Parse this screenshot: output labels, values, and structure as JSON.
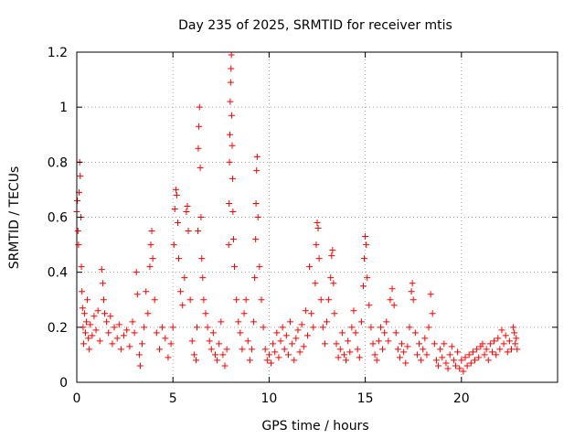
{
  "colors": {
    "series": "#ff0000"
  },
  "chart_data": {
    "type": "scatter",
    "title": "Day 235 of 2025, SRMTID for receiver mtis",
    "xlabel": "GPS time / hours",
    "ylabel": "SRMTID / TECUs",
    "xlim": [
      0,
      25
    ],
    "ylim": [
      0,
      1.2
    ],
    "x_ticks": [
      0,
      5,
      10,
      15,
      20
    ],
    "x_tick_labels": [
      "0",
      "5",
      "10",
      "15",
      "20"
    ],
    "y_ticks": [
      0,
      0.2,
      0.4,
      0.6,
      0.8,
      1,
      1.2
    ],
    "y_tick_labels": [
      "0",
      "0.2",
      "0.4",
      "0.6",
      "0.8",
      "1",
      "1.2"
    ],
    "grid": true,
    "marker": "plus",
    "series": [
      {
        "name": "SRMTID",
        "points": [
          [
            0.0,
            0.62
          ],
          [
            0.03,
            0.66
          ],
          [
            0.06,
            0.55
          ],
          [
            0.09,
            0.5
          ],
          [
            0.12,
            0.69
          ],
          [
            0.15,
            0.8
          ],
          [
            0.18,
            0.75
          ],
          [
            0.21,
            0.6
          ],
          [
            0.24,
            0.42
          ],
          [
            0.27,
            0.33
          ],
          [
            0.3,
            0.27
          ],
          [
            0.33,
            0.2
          ],
          [
            0.36,
            0.14
          ],
          [
            0.4,
            0.25
          ],
          [
            0.45,
            0.18
          ],
          [
            0.5,
            0.22
          ],
          [
            0.55,
            0.3
          ],
          [
            0.6,
            0.16
          ],
          [
            0.65,
            0.12
          ],
          [
            0.7,
            0.21
          ],
          [
            0.8,
            0.17
          ],
          [
            0.9,
            0.24
          ],
          [
            1.0,
            0.19
          ],
          [
            1.1,
            0.26
          ],
          [
            1.2,
            0.15
          ],
          [
            1.3,
            0.41
          ],
          [
            1.35,
            0.36
          ],
          [
            1.4,
            0.3
          ],
          [
            1.45,
            0.25
          ],
          [
            1.55,
            0.22
          ],
          [
            1.65,
            0.18
          ],
          [
            1.75,
            0.24
          ],
          [
            1.85,
            0.14
          ],
          [
            1.95,
            0.2
          ],
          [
            2.1,
            0.16
          ],
          [
            2.2,
            0.21
          ],
          [
            2.3,
            0.12
          ],
          [
            2.45,
            0.17
          ],
          [
            2.6,
            0.19
          ],
          [
            2.75,
            0.13
          ],
          [
            2.9,
            0.22
          ],
          [
            3.0,
            0.18
          ],
          [
            3.1,
            0.4
          ],
          [
            3.15,
            0.32
          ],
          [
            3.25,
            0.1
          ],
          [
            3.3,
            0.06
          ],
          [
            3.4,
            0.14
          ],
          [
            3.5,
            0.2
          ],
          [
            3.6,
            0.33
          ],
          [
            3.7,
            0.25
          ],
          [
            3.8,
            0.42
          ],
          [
            3.85,
            0.5
          ],
          [
            3.9,
            0.55
          ],
          [
            3.95,
            0.45
          ],
          [
            4.05,
            0.3
          ],
          [
            4.15,
            0.18
          ],
          [
            4.3,
            0.12
          ],
          [
            4.45,
            0.2
          ],
          [
            4.6,
            0.16
          ],
          [
            4.75,
            0.09
          ],
          [
            4.9,
            0.14
          ],
          [
            5.0,
            0.2
          ],
          [
            5.05,
            0.5
          ],
          [
            5.1,
            0.63
          ],
          [
            5.15,
            0.7
          ],
          [
            5.2,
            0.68
          ],
          [
            5.25,
            0.58
          ],
          [
            5.3,
            0.45
          ],
          [
            5.4,
            0.33
          ],
          [
            5.5,
            0.28
          ],
          [
            5.6,
            0.38
          ],
          [
            5.7,
            0.62
          ],
          [
            5.75,
            0.64
          ],
          [
            5.8,
            0.55
          ],
          [
            5.9,
            0.3
          ],
          [
            6.0,
            0.15
          ],
          [
            6.1,
            0.1
          ],
          [
            6.2,
            0.08
          ],
          [
            6.25,
            0.2
          ],
          [
            6.3,
            0.55
          ],
          [
            6.32,
            0.85
          ],
          [
            6.35,
            0.93
          ],
          [
            6.38,
            1.0
          ],
          [
            6.42,
            0.78
          ],
          [
            6.46,
            0.6
          ],
          [
            6.5,
            0.45
          ],
          [
            6.55,
            0.38
          ],
          [
            6.6,
            0.3
          ],
          [
            6.7,
            0.25
          ],
          [
            6.8,
            0.2
          ],
          [
            6.9,
            0.15
          ],
          [
            7.0,
            0.12
          ],
          [
            7.1,
            0.18
          ],
          [
            7.2,
            0.1
          ],
          [
            7.3,
            0.08
          ],
          [
            7.4,
            0.14
          ],
          [
            7.5,
            0.22
          ],
          [
            7.6,
            0.1
          ],
          [
            7.7,
            0.06
          ],
          [
            7.8,
            0.12
          ],
          [
            7.9,
            0.5
          ],
          [
            7.92,
            0.65
          ],
          [
            7.94,
            0.8
          ],
          [
            7.96,
            0.9
          ],
          [
            7.98,
            1.02
          ],
          [
            8.0,
            1.09
          ],
          [
            8.02,
            1.14
          ],
          [
            8.04,
            1.19
          ],
          [
            8.06,
            0.97
          ],
          [
            8.08,
            0.86
          ],
          [
            8.1,
            0.74
          ],
          [
            8.12,
            0.62
          ],
          [
            8.15,
            0.52
          ],
          [
            8.2,
            0.42
          ],
          [
            8.3,
            0.3
          ],
          [
            8.4,
            0.22
          ],
          [
            8.5,
            0.18
          ],
          [
            8.6,
            0.12
          ],
          [
            8.7,
            0.25
          ],
          [
            8.8,
            0.3
          ],
          [
            8.9,
            0.15
          ],
          [
            9.0,
            0.08
          ],
          [
            9.1,
            0.12
          ],
          [
            9.2,
            0.22
          ],
          [
            9.25,
            0.38
          ],
          [
            9.3,
            0.52
          ],
          [
            9.32,
            0.65
          ],
          [
            9.35,
            0.77
          ],
          [
            9.38,
            0.82
          ],
          [
            9.42,
            0.6
          ],
          [
            9.5,
            0.42
          ],
          [
            9.6,
            0.3
          ],
          [
            9.7,
            0.2
          ],
          [
            9.8,
            0.12
          ],
          [
            9.9,
            0.08
          ],
          [
            10.0,
            0.1
          ],
          [
            10.1,
            0.07
          ],
          [
            10.2,
            0.14
          ],
          [
            10.3,
            0.11
          ],
          [
            10.4,
            0.18
          ],
          [
            10.5,
            0.09
          ],
          [
            10.6,
            0.15
          ],
          [
            10.7,
            0.2
          ],
          [
            10.8,
            0.12
          ],
          [
            10.9,
            0.17
          ],
          [
            11.0,
            0.1
          ],
          [
            11.1,
            0.22
          ],
          [
            11.2,
            0.14
          ],
          [
            11.3,
            0.08
          ],
          [
            11.4,
            0.16
          ],
          [
            11.5,
            0.19
          ],
          [
            11.6,
            0.11
          ],
          [
            11.7,
            0.21
          ],
          [
            11.8,
            0.13
          ],
          [
            11.9,
            0.26
          ],
          [
            12.0,
            0.17
          ],
          [
            12.1,
            0.42
          ],
          [
            12.2,
            0.25
          ],
          [
            12.3,
            0.2
          ],
          [
            12.4,
            0.36
          ],
          [
            12.45,
            0.5
          ],
          [
            12.5,
            0.58
          ],
          [
            12.55,
            0.56
          ],
          [
            12.6,
            0.45
          ],
          [
            12.7,
            0.3
          ],
          [
            12.8,
            0.2
          ],
          [
            12.9,
            0.14
          ],
          [
            13.0,
            0.22
          ],
          [
            13.1,
            0.3
          ],
          [
            13.2,
            0.38
          ],
          [
            13.25,
            0.46
          ],
          [
            13.3,
            0.48
          ],
          [
            13.35,
            0.36
          ],
          [
            13.4,
            0.25
          ],
          [
            13.5,
            0.14
          ],
          [
            13.6,
            0.09
          ],
          [
            13.7,
            0.12
          ],
          [
            13.8,
            0.18
          ],
          [
            13.9,
            0.1
          ],
          [
            14.0,
            0.08
          ],
          [
            14.1,
            0.15
          ],
          [
            14.2,
            0.11
          ],
          [
            14.3,
            0.2
          ],
          [
            14.4,
            0.26
          ],
          [
            14.5,
            0.18
          ],
          [
            14.6,
            0.12
          ],
          [
            14.7,
            0.09
          ],
          [
            14.8,
            0.22
          ],
          [
            14.9,
            0.35
          ],
          [
            14.95,
            0.45
          ],
          [
            15.0,
            0.53
          ],
          [
            15.05,
            0.5
          ],
          [
            15.1,
            0.38
          ],
          [
            15.2,
            0.28
          ],
          [
            15.3,
            0.2
          ],
          [
            15.4,
            0.14
          ],
          [
            15.5,
            0.1
          ],
          [
            15.6,
            0.08
          ],
          [
            15.7,
            0.15
          ],
          [
            15.8,
            0.2
          ],
          [
            15.9,
            0.12
          ],
          [
            16.0,
            0.18
          ],
          [
            16.1,
            0.22
          ],
          [
            16.2,
            0.15
          ],
          [
            16.3,
            0.3
          ],
          [
            16.4,
            0.34
          ],
          [
            16.5,
            0.28
          ],
          [
            16.6,
            0.18
          ],
          [
            16.7,
            0.12
          ],
          [
            16.8,
            0.09
          ],
          [
            16.9,
            0.14
          ],
          [
            17.0,
            0.11
          ],
          [
            17.1,
            0.07
          ],
          [
            17.2,
            0.13
          ],
          [
            17.3,
            0.2
          ],
          [
            17.4,
            0.33
          ],
          [
            17.45,
            0.36
          ],
          [
            17.5,
            0.3
          ],
          [
            17.6,
            0.18
          ],
          [
            17.7,
            0.1
          ],
          [
            17.8,
            0.14
          ],
          [
            17.9,
            0.08
          ],
          [
            18.0,
            0.12
          ],
          [
            18.1,
            0.16
          ],
          [
            18.2,
            0.1
          ],
          [
            18.3,
            0.2
          ],
          [
            18.4,
            0.32
          ],
          [
            18.5,
            0.25
          ],
          [
            18.6,
            0.14
          ],
          [
            18.7,
            0.08
          ],
          [
            18.8,
            0.06
          ],
          [
            18.9,
            0.12
          ],
          [
            19.0,
            0.09
          ],
          [
            19.1,
            0.14
          ],
          [
            19.2,
            0.07
          ],
          [
            19.3,
            0.05
          ],
          [
            19.4,
            0.1
          ],
          [
            19.5,
            0.13
          ],
          [
            19.6,
            0.08
          ],
          [
            19.7,
            0.06
          ],
          [
            19.8,
            0.11
          ],
          [
            19.9,
            0.05
          ],
          [
            20.0,
            0.08
          ],
          [
            20.1,
            0.04
          ],
          [
            20.2,
            0.09
          ],
          [
            20.3,
            0.06
          ],
          [
            20.4,
            0.1
          ],
          [
            20.5,
            0.07
          ],
          [
            20.6,
            0.11
          ],
          [
            20.7,
            0.08
          ],
          [
            20.8,
            0.12
          ],
          [
            20.9,
            0.09
          ],
          [
            21.0,
            0.13
          ],
          [
            21.1,
            0.14
          ],
          [
            21.2,
            0.1
          ],
          [
            21.3,
            0.12
          ],
          [
            21.4,
            0.08
          ],
          [
            21.5,
            0.14
          ],
          [
            21.6,
            0.11
          ],
          [
            21.7,
            0.15
          ],
          [
            21.8,
            0.1
          ],
          [
            21.9,
            0.16
          ],
          [
            22.0,
            0.12
          ],
          [
            22.1,
            0.19
          ],
          [
            22.2,
            0.14
          ],
          [
            22.3,
            0.17
          ],
          [
            22.4,
            0.11
          ],
          [
            22.5,
            0.15
          ],
          [
            22.6,
            0.12
          ],
          [
            22.7,
            0.2
          ],
          [
            22.75,
            0.18
          ],
          [
            22.8,
            0.14
          ],
          [
            22.85,
            0.16
          ],
          [
            22.9,
            0.12
          ]
        ]
      }
    ]
  }
}
